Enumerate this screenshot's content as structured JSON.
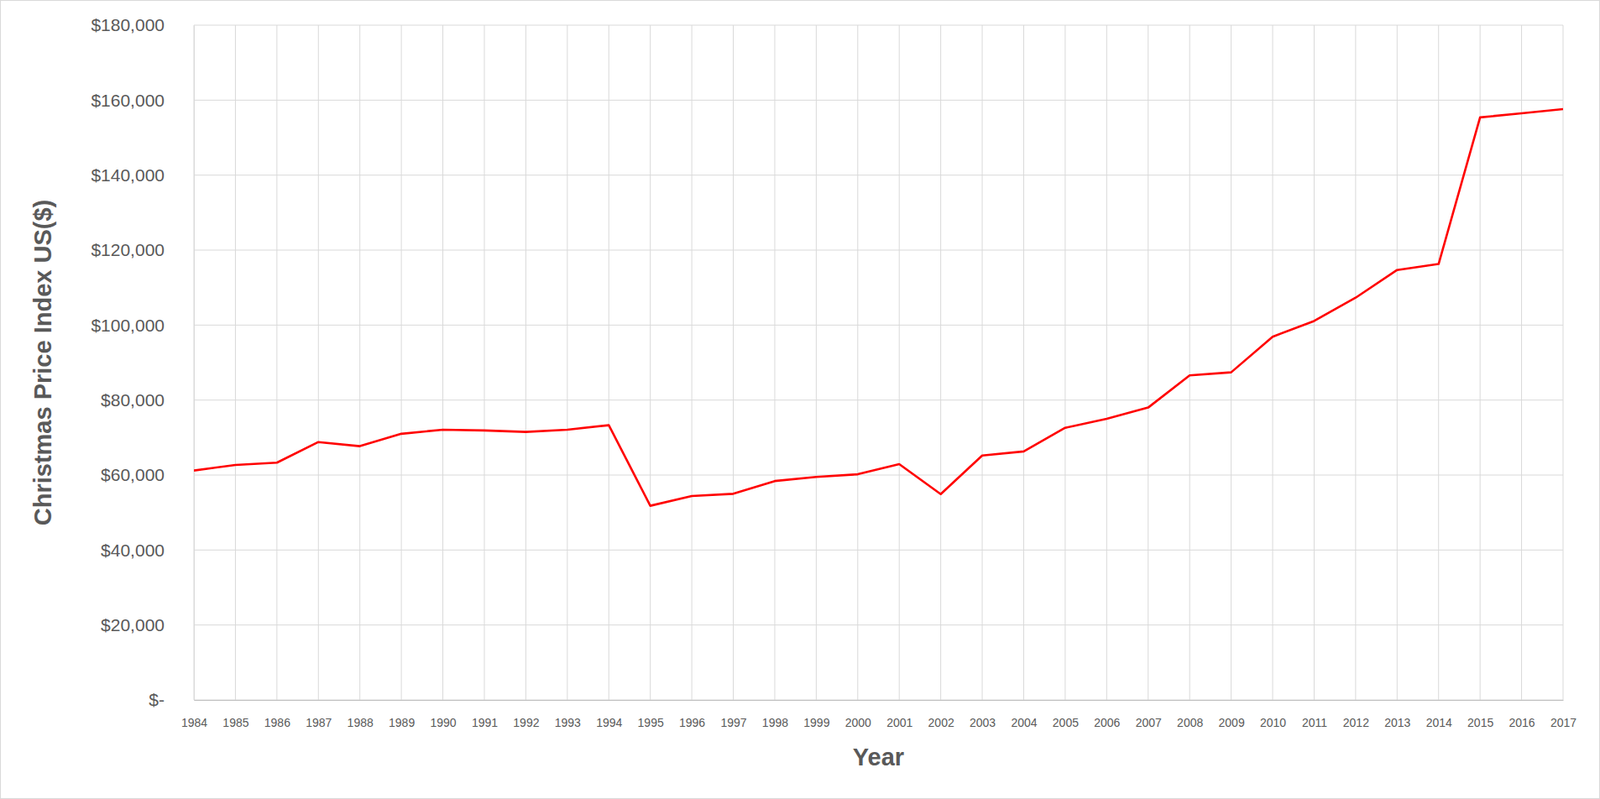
{
  "chart_data": {
    "type": "line",
    "x_label": "Year",
    "y_label": "Christmas Price Index US($)",
    "categories": [
      "1984",
      "1985",
      "1986",
      "1987",
      "1988",
      "1989",
      "1990",
      "1991",
      "1992",
      "1993",
      "1994",
      "1995",
      "1996",
      "1997",
      "1998",
      "1999",
      "2000",
      "2001",
      "2002",
      "2003",
      "2004",
      "2005",
      "2006",
      "2007",
      "2008",
      "2009",
      "2010",
      "2011",
      "2012",
      "2013",
      "2014",
      "2015",
      "2016",
      "2017"
    ],
    "values": [
      61200,
      62700,
      63300,
      68800,
      67700,
      71000,
      72100,
      71900,
      71500,
      72100,
      73300,
      51800,
      54400,
      55000,
      58400,
      59500,
      60200,
      62900,
      54900,
      65200,
      66300,
      72600,
      75000,
      78000,
      86600,
      87400,
      96900,
      101100,
      107300,
      114700,
      116300,
      155400,
      156500,
      157600
    ],
    "color": "#ff0000",
    "ylim": [
      0,
      180000
    ],
    "yticks": [
      {
        "value": 0,
        "label": "$-"
      },
      {
        "value": 20000,
        "label": "$20,000"
      },
      {
        "value": 40000,
        "label": "$40,000"
      },
      {
        "value": 60000,
        "label": "$60,000"
      },
      {
        "value": 80000,
        "label": "$80,000"
      },
      {
        "value": 100000,
        "label": "$100,000"
      },
      {
        "value": 120000,
        "label": "$120,000"
      },
      {
        "value": 140000,
        "label": "$140,000"
      },
      {
        "value": 160000,
        "label": "$160,000"
      },
      {
        "value": 180000,
        "label": "$180,000"
      }
    ],
    "grid": true
  }
}
